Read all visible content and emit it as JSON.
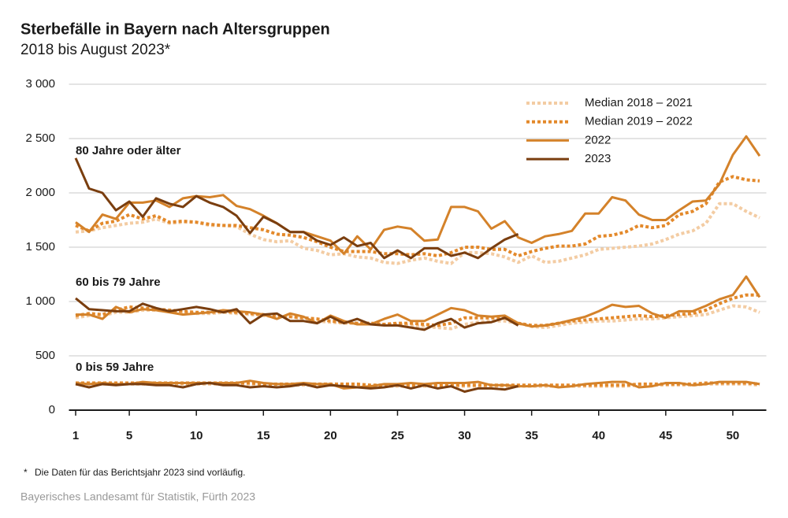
{
  "chart_data": {
    "type": "line",
    "title": "Sterbefälle in Bayern nach Altersgruppen",
    "subtitle": "2018 bis August 2023*",
    "groups": [
      "80 Jahre oder älter",
      "60 bis 79 Jahre",
      "0 bis 59 Jahre"
    ],
    "x": [
      1,
      2,
      3,
      4,
      5,
      6,
      7,
      8,
      9,
      10,
      11,
      12,
      13,
      14,
      15,
      16,
      17,
      18,
      19,
      20,
      21,
      22,
      23,
      24,
      25,
      26,
      27,
      28,
      29,
      30,
      31,
      32,
      33,
      34,
      35,
      36,
      37,
      38,
      39,
      40,
      41,
      42,
      43,
      44,
      45,
      46,
      47,
      48,
      49,
      50,
      51,
      52
    ],
    "xlim": [
      0.5,
      52.5
    ],
    "xticks": [
      1,
      5,
      10,
      15,
      20,
      25,
      30,
      35,
      40,
      45,
      50
    ],
    "ylim": [
      0,
      3000
    ],
    "yticks": [
      0,
      500,
      {
        "value": 1000,
        "label": "1 000"
      },
      {
        "value": 1500,
        "label": "1 500"
      },
      {
        "value": 2000,
        "label": "2 000"
      },
      {
        "value": 2500,
        "label": "2 500"
      },
      {
        "value": 3000,
        "label": "3 000"
      }
    ],
    "grid": true,
    "legend": "top-right",
    "series": [
      {
        "name": "Median 2018 – 2021",
        "color": "#f3cca3",
        "dash": "dotted",
        "values": [
          [
            1640,
            1650,
            1680,
            1700,
            1720,
            1730,
            1760,
            1720,
            1730,
            1730,
            1700,
            1700,
            1690,
            1620,
            1570,
            1550,
            1560,
            1490,
            1470,
            1430,
            1440,
            1410,
            1400,
            1360,
            1350,
            1380,
            1400,
            1370,
            1350,
            1450,
            1450,
            1440,
            1410,
            1360,
            1420,
            1360,
            1370,
            1400,
            1430,
            1480,
            1490,
            1500,
            1510,
            1530,
            1570,
            1620,
            1650,
            1720,
            1900,
            1900,
            1830,
            1770
          ],
          [
            850,
            870,
            870,
            900,
            900,
            920,
            920,
            910,
            900,
            890,
            890,
            900,
            890,
            880,
            870,
            860,
            860,
            840,
            820,
            810,
            800,
            800,
            800,
            790,
            790,
            780,
            770,
            760,
            750,
            790,
            810,
            820,
            820,
            800,
            770,
            760,
            780,
            800,
            810,
            820,
            820,
            830,
            840,
            840,
            850,
            860,
            870,
            880,
            920,
            960,
            950,
            900
          ],
          [
            240,
            240,
            240,
            240,
            240,
            240,
            240,
            240,
            240,
            240,
            240,
            240,
            240,
            240,
            230,
            230,
            230,
            230,
            230,
            230,
            230,
            230,
            220,
            220,
            220,
            220,
            220,
            220,
            220,
            220,
            220,
            220,
            220,
            220,
            220,
            220,
            220,
            220,
            220,
            220,
            220,
            220,
            230,
            230,
            230,
            230,
            230,
            240,
            240,
            240,
            240,
            230
          ]
        ]
      },
      {
        "name": "Median 2019 – 2022",
        "color": "#e3892b",
        "dash": "dotted",
        "values": [
          [
            1700,
            1650,
            1720,
            1740,
            1800,
            1760,
            1790,
            1730,
            1740,
            1730,
            1710,
            1700,
            1700,
            1680,
            1660,
            1620,
            1610,
            1590,
            1550,
            1500,
            1460,
            1460,
            1460,
            1440,
            1440,
            1430,
            1440,
            1420,
            1450,
            1500,
            1500,
            1480,
            1480,
            1420,
            1460,
            1490,
            1510,
            1510,
            1530,
            1600,
            1610,
            1640,
            1700,
            1680,
            1700,
            1800,
            1830,
            1900,
            2100,
            2150,
            2120,
            2110
          ],
          [
            870,
            890,
            880,
            920,
            950,
            940,
            930,
            920,
            910,
            900,
            900,
            910,
            900,
            890,
            880,
            860,
            860,
            850,
            840,
            820,
            810,
            800,
            800,
            790,
            800,
            800,
            790,
            780,
            800,
            850,
            850,
            850,
            850,
            800,
            780,
            780,
            800,
            820,
            830,
            840,
            850,
            860,
            870,
            860,
            870,
            880,
            890,
            920,
            980,
            1030,
            1060,
            1060
          ],
          [
            250,
            250,
            250,
            250,
            250,
            250,
            250,
            250,
            250,
            250,
            250,
            250,
            250,
            250,
            240,
            240,
            240,
            240,
            240,
            240,
            240,
            240,
            230,
            230,
            230,
            230,
            230,
            230,
            230,
            230,
            230,
            230,
            230,
            230,
            230,
            230,
            230,
            230,
            230,
            230,
            230,
            230,
            240,
            240,
            240,
            240,
            240,
            250,
            250,
            250,
            250,
            240
          ]
        ]
      },
      {
        "name": "2022",
        "color": "#d4822a",
        "dash": "solid",
        "values": [
          [
            1730,
            1640,
            1800,
            1760,
            1910,
            1910,
            1930,
            1870,
            1950,
            1970,
            1960,
            1980,
            1880,
            1850,
            1790,
            1720,
            1640,
            1640,
            1600,
            1560,
            1440,
            1600,
            1480,
            1660,
            1690,
            1670,
            1560,
            1570,
            1870,
            1870,
            1830,
            1670,
            1740,
            1590,
            1540,
            1600,
            1620,
            1650,
            1810,
            1810,
            1960,
            1930,
            1800,
            1750,
            1750,
            1840,
            1920,
            1930,
            2080,
            2350,
            2520,
            2340
          ],
          [
            880,
            880,
            840,
            950,
            900,
            930,
            920,
            900,
            880,
            890,
            900,
            920,
            910,
            900,
            880,
            840,
            890,
            860,
            800,
            870,
            820,
            790,
            790,
            840,
            880,
            820,
            820,
            880,
            940,
            920,
            870,
            860,
            870,
            800,
            770,
            780,
            800,
            830,
            860,
            910,
            970,
            950,
            960,
            890,
            850,
            910,
            910,
            960,
            1020,
            1060,
            1230,
            1040
          ],
          [
            250,
            240,
            250,
            240,
            240,
            260,
            250,
            250,
            250,
            250,
            250,
            250,
            250,
            270,
            250,
            240,
            240,
            250,
            240,
            240,
            200,
            210,
            220,
            240,
            240,
            250,
            240,
            250,
            250,
            250,
            260,
            230,
            230,
            220,
            220,
            230,
            210,
            220,
            240,
            250,
            260,
            260,
            210,
            220,
            250,
            250,
            230,
            240,
            260,
            260,
            260,
            240
          ]
        ]
      },
      {
        "name": "2023",
        "color": "#7a3e0f",
        "dash": "solid",
        "values": [
          [
            2320,
            2040,
            2000,
            1840,
            1920,
            1780,
            1950,
            1900,
            1870,
            1970,
            1910,
            1870,
            1790,
            1630,
            1780,
            1720,
            1640,
            1640,
            1560,
            1520,
            1590,
            1510,
            1540,
            1400,
            1470,
            1400,
            1490,
            1490,
            1420,
            1450,
            1400,
            1490,
            1570,
            1620
          ],
          [
            1030,
            930,
            920,
            910,
            910,
            980,
            940,
            910,
            930,
            950,
            930,
            900,
            930,
            800,
            880,
            890,
            820,
            820,
            800,
            860,
            800,
            840,
            790,
            780,
            780,
            760,
            740,
            800,
            840,
            760,
            800,
            810,
            850,
            780
          ],
          [
            240,
            210,
            240,
            230,
            240,
            240,
            230,
            230,
            210,
            240,
            250,
            230,
            230,
            210,
            220,
            210,
            220,
            240,
            210,
            230,
            220,
            210,
            200,
            210,
            230,
            200,
            230,
            200,
            220,
            170,
            200,
            200,
            190,
            220
          ]
        ]
      }
    ],
    "footnote_mark": "*",
    "footnote": "Die Daten für das Berichtsjahr 2023 sind vorläufig.",
    "source": "Bayerisches Landesamt für Statistik, Fürth 2023"
  }
}
